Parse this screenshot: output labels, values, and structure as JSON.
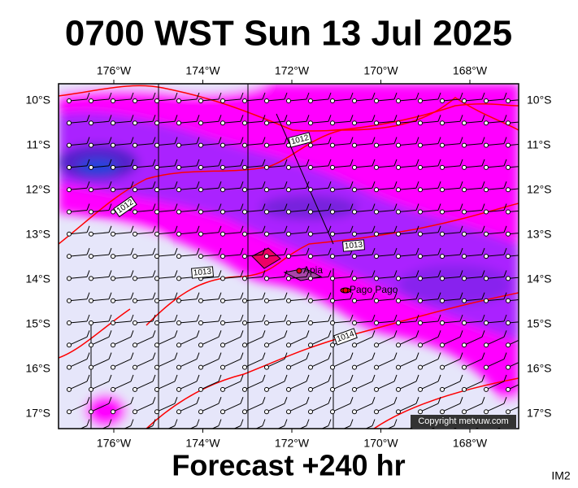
{
  "header": {
    "title": "0700 WST Sun 13 Jul 2025"
  },
  "map": {
    "lon_labels": [
      "176°W",
      "174°W",
      "172°W",
      "170°W",
      "168°W"
    ],
    "lat_labels": [
      "10°S",
      "11°S",
      "12°S",
      "13°S",
      "14°S",
      "15°S",
      "16°S",
      "17°S"
    ],
    "places": [
      "Apia",
      "Pago Pago"
    ],
    "isobar_labels": [
      "1012",
      "1012",
      "1013",
      "1013",
      "1014"
    ],
    "copyright": "Copyright metvuw.com"
  },
  "footer": {
    "forecast": "Forecast +240 hr",
    "code": "IM2"
  }
}
